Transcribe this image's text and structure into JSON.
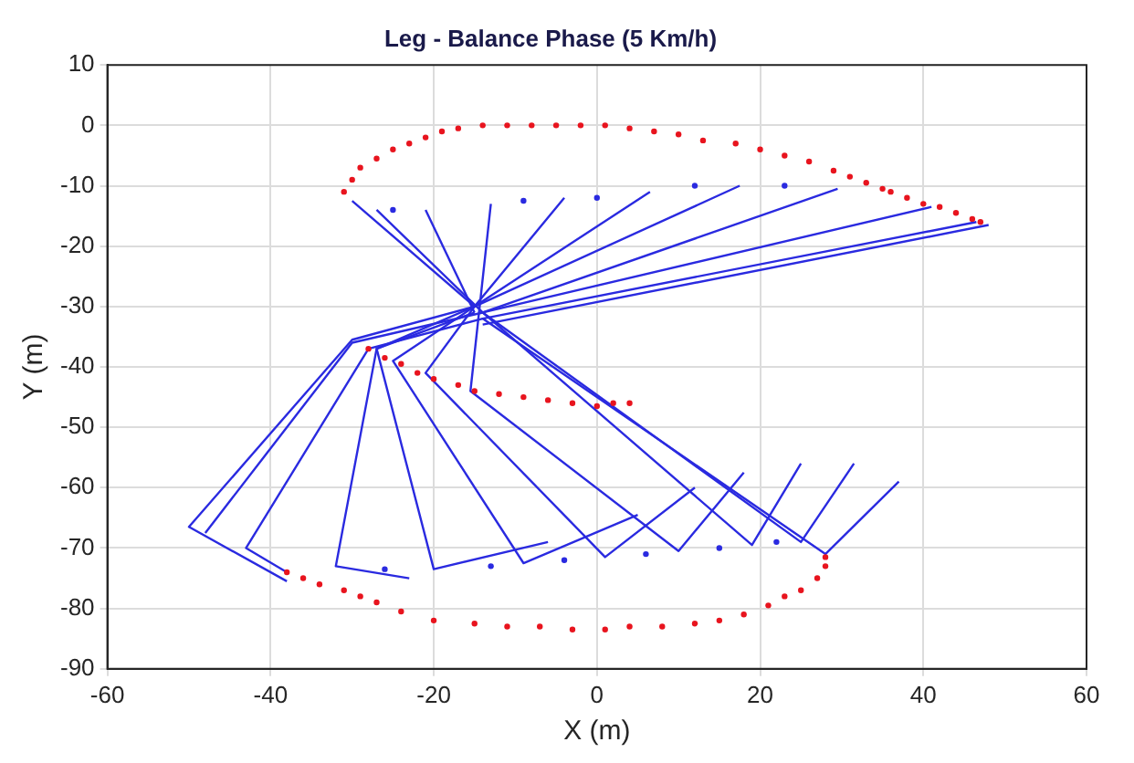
{
  "chart_data": {
    "type": "line",
    "title": "Leg - Balance Phase (5 Km/h)",
    "xlabel": "X (m)",
    "ylabel": "Y (m)",
    "xlim": [
      -60,
      60
    ],
    "xticks": [
      -60,
      -40,
      -20,
      0,
      20,
      40,
      60
    ],
    "ylim": [
      -90,
      10
    ],
    "yticks": [
      -90,
      -80,
      -70,
      -60,
      -50,
      -40,
      -30,
      -20,
      -10,
      0,
      10
    ],
    "grid": true,
    "legend": false,
    "series": [
      {
        "type": "scatter",
        "marker": "circle",
        "color": "#e8141e",
        "x": [
          -31,
          -30,
          -29,
          -27,
          -25,
          -23,
          -21,
          -19,
          -17,
          -14,
          -11,
          -8,
          -5,
          -2,
          1,
          4,
          7,
          10,
          13,
          17,
          20,
          23,
          26,
          29,
          31,
          33,
          35,
          36,
          38,
          40,
          42,
          44,
          46,
          47,
          -28,
          -26,
          -24,
          -22,
          -20,
          -17,
          -15,
          -12,
          -9,
          -6,
          -3,
          0,
          2,
          4,
          -38,
          -36,
          -34,
          -31,
          -29,
          -27,
          -24,
          -20,
          -15,
          -11,
          -7,
          -3,
          1,
          4,
          8,
          12,
          15,
          18,
          21,
          23,
          25,
          27,
          28,
          28
        ],
        "values": [
          -11,
          -9,
          -7,
          -5.5,
          -4,
          -3,
          -2,
          -1,
          -0.5,
          0,
          0,
          0,
          0,
          0,
          0,
          -0.5,
          -1,
          -1.5,
          -2.5,
          -3,
          -4,
          -5,
          -6,
          -7.5,
          -8.5,
          -9.5,
          -10.5,
          -11,
          -12,
          -13,
          -13.5,
          -14.5,
          -15.5,
          -16,
          -37,
          -38.5,
          -39.5,
          -41,
          -42,
          -43,
          -44,
          -44.5,
          -45,
          -45.5,
          -46,
          -46.5,
          -46,
          -46,
          -74,
          -75,
          -76,
          -77,
          -78,
          -79,
          -80.5,
          -82,
          -82.5,
          -83,
          -83,
          -83.5,
          -83.5,
          -83,
          -83,
          -82.5,
          -82,
          -81,
          -79.5,
          -78,
          -77,
          -75,
          -73,
          -71.5
        ]
      },
      {
        "type": "scatter",
        "marker": "circle",
        "color": "#2a2ae0",
        "x": [
          -25,
          -9,
          0,
          12,
          23,
          -26,
          -13,
          -4,
          6,
          15,
          22
        ],
        "values": [
          -14,
          -12.5,
          -12,
          -10,
          -10,
          -73.5,
          -73,
          -72,
          -71,
          -70,
          -69
        ]
      },
      {
        "type": "line",
        "marker": "none",
        "color": "#2a2ae0",
        "x": [
          -30,
          -15,
          -30,
          -50,
          -38
        ],
        "values": [
          -12.5,
          -30,
          -35.5,
          -66.5,
          -75.5
        ]
      },
      {
        "type": "line",
        "marker": "none",
        "color": "#2a2ae0",
        "x": [
          -27,
          -14,
          -30,
          -48
        ],
        "values": [
          -14,
          -31,
          -36,
          -67.5
        ]
      },
      {
        "type": "line",
        "marker": "none",
        "color": "#2a2ae0",
        "x": [
          -14,
          -28,
          -43,
          -38
        ],
        "values": [
          -32,
          -37,
          -70,
          -74
        ]
      },
      {
        "type": "line",
        "marker": "none",
        "color": "#2a2ae0",
        "x": [
          -21,
          -15
        ],
        "values": [
          -14,
          -31
        ]
      },
      {
        "type": "line",
        "marker": "none",
        "color": "#2a2ae0",
        "x": [
          -15,
          -27,
          -32,
          -23
        ],
        "values": [
          -31,
          -37,
          -73,
          -75
        ]
      },
      {
        "type": "line",
        "marker": "none",
        "color": "#2a2ae0",
        "x": [
          -13,
          -15.5,
          10,
          18
        ],
        "values": [
          -13,
          -44,
          -70.5,
          -57.5
        ]
      },
      {
        "type": "line",
        "marker": "none",
        "color": "#2a2ae0",
        "x": [
          -4,
          -15,
          -27,
          -20,
          -6
        ],
        "values": [
          -12,
          -30,
          -37,
          -73.5,
          -69
        ]
      },
      {
        "type": "line",
        "marker": "none",
        "color": "#2a2ae0",
        "x": [
          6.5,
          -15,
          -25,
          -9,
          5
        ],
        "values": [
          -11,
          -30,
          -39,
          -72.5,
          -64.5
        ]
      },
      {
        "type": "line",
        "marker": "none",
        "color": "#2a2ae0",
        "x": [
          17.5,
          -15,
          -21,
          1,
          12
        ],
        "values": [
          -10,
          -30,
          -41,
          -71.5,
          -60
        ]
      },
      {
        "type": "line",
        "marker": "none",
        "color": "#2a2ae0",
        "x": [
          29.5,
          -14,
          19,
          25
        ],
        "values": [
          -10.5,
          -31,
          -69.5,
          -56
        ]
      },
      {
        "type": "line",
        "marker": "none",
        "color": "#2a2ae0",
        "x": [
          41,
          -14,
          25,
          31.5
        ],
        "values": [
          -13.5,
          -31,
          -69,
          -56
        ]
      },
      {
        "type": "line",
        "marker": "none",
        "color": "#2a2ae0",
        "x": [
          46.5,
          -14,
          28,
          37
        ],
        "values": [
          -16,
          -32,
          -71,
          -59
        ]
      },
      {
        "type": "line",
        "marker": "none",
        "color": "#2a2ae0",
        "x": [
          48,
          -14
        ],
        "values": [
          -16.5,
          -33
        ]
      }
    ]
  }
}
